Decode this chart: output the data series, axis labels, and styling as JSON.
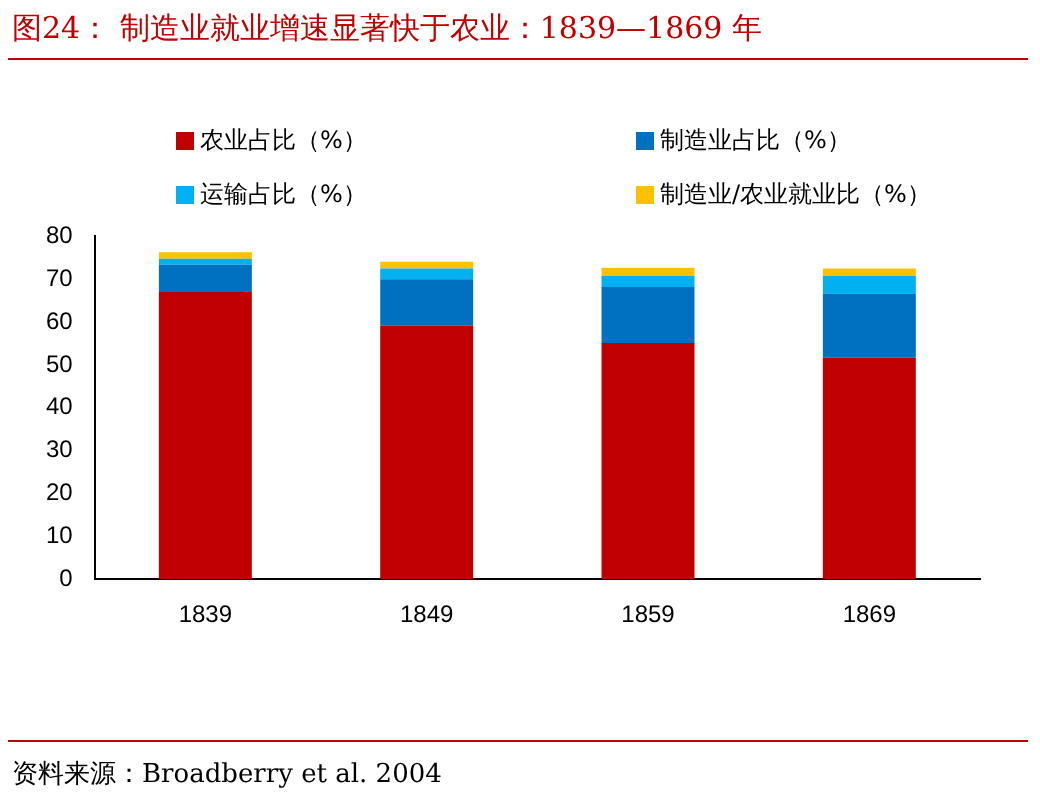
{
  "chart_data": {
    "type": "bar",
    "title": "图24：  制造业就业增速显著快于农业：1839—1869 年",
    "categories": [
      "1839",
      "1849",
      "1859",
      "1869"
    ],
    "stacked": true,
    "series": [
      {
        "name": "农业占比（%）",
        "color": "#c00000",
        "values": [
          67.0,
          59.2,
          55.1,
          51.7
        ]
      },
      {
        "name": "制造业占比（%）",
        "color": "#0070c0",
        "values": [
          6.4,
          10.8,
          13.1,
          15.0
        ]
      },
      {
        "name": "运输占比（%）",
        "color": "#00b0f0",
        "values": [
          1.4,
          2.5,
          2.6,
          4.1
        ]
      },
      {
        "name": "制造业/农业就业比（%）",
        "color": "#ffc000",
        "values": [
          1.5,
          1.6,
          1.9,
          1.7
        ]
      }
    ],
    "ylim": [
      0,
      80
    ],
    "yticks": [
      0,
      10,
      20,
      30,
      40,
      50,
      60,
      70,
      80
    ],
    "grid": false,
    "legend": "top",
    "annotations": [
      "资料来源：Broadberry et al. 2004"
    ]
  }
}
